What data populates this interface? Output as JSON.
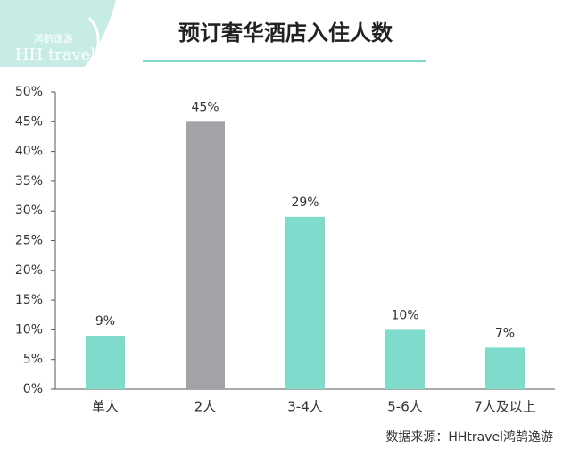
{
  "logo": {
    "cn": "鸿鹄逸游",
    "en": "HH travel"
  },
  "chart_data": {
    "type": "bar",
    "title": "预订奢华酒店入住人数",
    "categories": [
      "单人",
      "2人",
      "3-4人",
      "5-6人",
      "7人及以上"
    ],
    "values": [
      9,
      45,
      29,
      10,
      7
    ],
    "value_labels": [
      "9%",
      "45%",
      "29%",
      "10%",
      "7%"
    ],
    "colors": [
      "#7fdccd",
      "#a3a2a6",
      "#7fdccd",
      "#7fdccd",
      "#7fdccd"
    ],
    "ylim": [
      0,
      50
    ],
    "yticks": [
      {
        "value": 0,
        "label": "0%"
      },
      {
        "value": 5,
        "label": "5%"
      },
      {
        "value": 10,
        "label": "10%"
      },
      {
        "value": 15,
        "label": "15%"
      },
      {
        "value": 20,
        "label": "20%"
      },
      {
        "value": 25,
        "label": "25%"
      },
      {
        "value": 30,
        "label": "30%"
      },
      {
        "value": 35,
        "label": "35%"
      },
      {
        "value": 40,
        "label": "40%"
      },
      {
        "value": 45,
        "label": "45%"
      },
      {
        "value": 50,
        "label": "50%"
      }
    ],
    "source": "数据来源：HHtravel鸿鹄逸游"
  }
}
